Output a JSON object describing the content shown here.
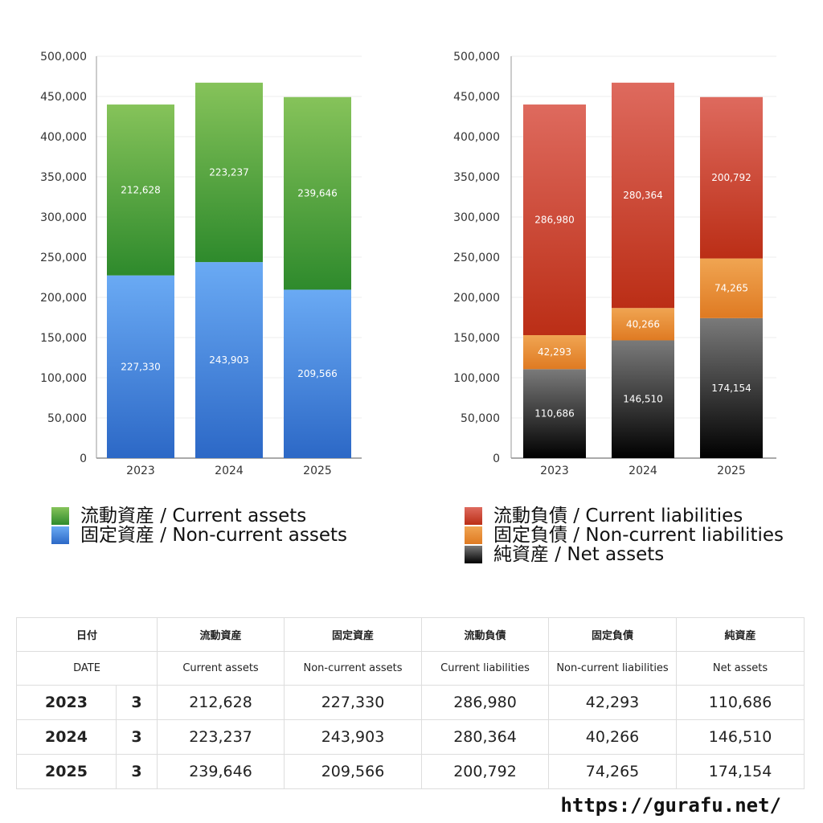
{
  "colors": {
    "current_assets": "#4e9a3a",
    "non_current_assets": "#4f8fe0",
    "current_liabilities": "#cf3b2a",
    "non_current_liabilities": "#e98b2f",
    "net_assets": "#333333"
  },
  "chart_data": [
    {
      "type": "bar",
      "stacked": true,
      "categories": [
        "2023",
        "2024",
        "2025"
      ],
      "ylim": [
        0,
        500000
      ],
      "yticks": [
        "0",
        "50,000",
        "100,000",
        "150,000",
        "200,000",
        "250,000",
        "300,000",
        "350,000",
        "400,000",
        "450,000",
        "500,000"
      ],
      "grid": true,
      "series": [
        {
          "name": "固定資産 / Non-current assets",
          "key": "non_current_assets",
          "values": [
            227330,
            243903,
            209566
          ],
          "labels": [
            "227,330",
            "243,903",
            "209,566"
          ]
        },
        {
          "name": "流動資産 / Current assets",
          "key": "current_assets",
          "values": [
            212628,
            223237,
            239646
          ],
          "labels": [
            "212,628",
            "223,237",
            "239,646"
          ]
        }
      ]
    },
    {
      "type": "bar",
      "stacked": true,
      "categories": [
        "2023",
        "2024",
        "2025"
      ],
      "ylim": [
        0,
        500000
      ],
      "yticks": [
        "0",
        "50,000",
        "100,000",
        "150,000",
        "200,000",
        "250,000",
        "300,000",
        "350,000",
        "400,000",
        "450,000",
        "500,000"
      ],
      "grid": true,
      "series": [
        {
          "name": "純資産 / Net assets",
          "key": "net_assets",
          "values": [
            110686,
            146510,
            174154
          ],
          "labels": [
            "110,686",
            "146,510",
            "174,154"
          ]
        },
        {
          "name": "固定負債 / Non-current liabilities",
          "key": "non_current_liabilities",
          "values": [
            42293,
            40266,
            74265
          ],
          "labels": [
            "42,293",
            "40,266",
            "74,265"
          ]
        },
        {
          "name": "流動負債 / Current liabilities",
          "key": "current_liabilities",
          "values": [
            286980,
            280364,
            200792
          ],
          "labels": [
            "286,980",
            "280,364",
            "200,792"
          ]
        }
      ]
    }
  ],
  "legend_left": [
    {
      "label": "流動資産 / Current assets",
      "color": "#4e9a3a"
    },
    {
      "label": "固定資産 / Non-current assets",
      "color": "#4f8fe0"
    }
  ],
  "legend_right": [
    {
      "label": "流動負債 / Current liabilities",
      "color": "#cf3b2a"
    },
    {
      "label": "固定負債 / Non-current liabilities",
      "color": "#e98b2f"
    },
    {
      "label": "純資産 / Net assets",
      "color": "#222222"
    }
  ],
  "table": {
    "headers_ja": [
      "日付",
      "流動資産",
      "固定資産",
      "流動負債",
      "固定負債",
      "純資産"
    ],
    "headers_en": [
      "DATE",
      "Current assets",
      "Non-current assets",
      "Current liabilities",
      "Non-current liabilities",
      "Net assets"
    ],
    "rows": [
      {
        "year": "2023",
        "month": "3",
        "values": [
          "212,628",
          "227,330",
          "286,980",
          "42,293",
          "110,686"
        ]
      },
      {
        "year": "2024",
        "month": "3",
        "values": [
          "223,237",
          "243,903",
          "280,364",
          "40,266",
          "146,510"
        ]
      },
      {
        "year": "2025",
        "month": "3",
        "values": [
          "239,646",
          "209,566",
          "200,792",
          "74,265",
          "174,154"
        ]
      }
    ]
  },
  "site_url": "https://gurafu.net/"
}
